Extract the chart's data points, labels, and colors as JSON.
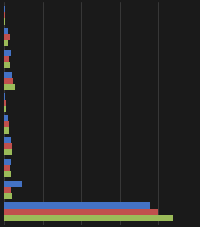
{
  "series": [
    {
      "name": "green",
      "color": "#9bbb59",
      "values": [
        1,
        4,
        6,
        11,
        2,
        5,
        8,
        7,
        8,
        162
      ]
    },
    {
      "name": "red",
      "color": "#c0504d",
      "values": [
        1,
        6,
        5,
        9,
        2,
        5,
        8,
        6,
        7,
        148
      ]
    },
    {
      "name": "blue",
      "color": "#4472c4",
      "values": [
        1,
        4,
        7,
        8,
        1,
        4,
        7,
        7,
        17,
        140
      ]
    }
  ],
  "n_categories": 10,
  "background_color": "#1a1a1a",
  "plot_background": "#1a1a1a",
  "grid_color": "#444444",
  "bar_height": 0.28,
  "xlim": [
    0,
    185
  ],
  "grid_positions": [
    0,
    37,
    74,
    111,
    148,
    185
  ]
}
